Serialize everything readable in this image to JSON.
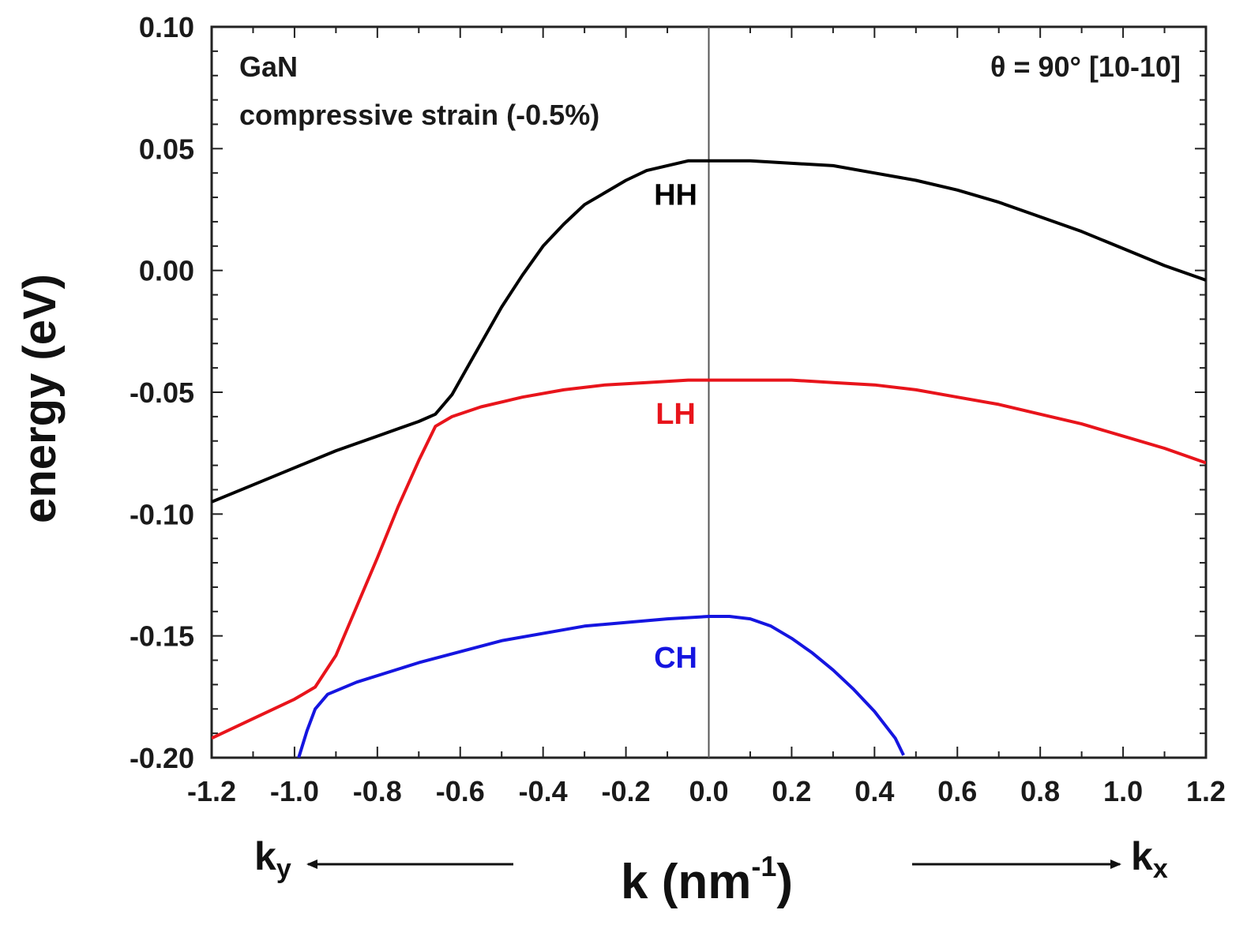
{
  "chart_data": {
    "type": "line",
    "xlabel": "k (nm",
    "xlabel_sup": "-1",
    "xlabel_close": ")",
    "ylabel": "energy (eV)",
    "xlim": [
      -1.2,
      1.2
    ],
    "ylim": [
      -0.2,
      0.1
    ],
    "x_ticks": [
      -1.2,
      -1.0,
      -0.8,
      -0.6,
      -0.4,
      -0.2,
      0.0,
      0.2,
      0.4,
      0.6,
      0.8,
      1.0,
      1.2
    ],
    "x_tick_labels": [
      "-1.2",
      "-1.0",
      "-0.8",
      "-0.6",
      "-0.4",
      "-0.2",
      "0.0",
      "0.2",
      "0.4",
      "0.6",
      "0.8",
      "1.0",
      "1.2"
    ],
    "y_ticks": [
      -0.2,
      -0.15,
      -0.1,
      -0.05,
      0.0,
      0.05,
      0.1
    ],
    "y_tick_labels": [
      "-0.20",
      "-0.15",
      "-0.10",
      "-0.05",
      "0.00",
      "0.05",
      "0.10"
    ],
    "vertical_line_x": 0.0,
    "grid": false,
    "annotations": {
      "material": "GaN",
      "strain": "compressive strain (-0.5%)",
      "angle": "θ = 90°   [10-10]"
    },
    "direction_labels": {
      "left": "k",
      "left_sub": "y",
      "right": "k",
      "right_sub": "x"
    },
    "series": [
      {
        "name": "HH",
        "color": "#000000",
        "label_pos": [
          -0.08,
          0.027
        ],
        "x": [
          -1.2,
          -1.1,
          -1.0,
          -0.9,
          -0.8,
          -0.7,
          -0.66,
          -0.62,
          -0.58,
          -0.54,
          -0.5,
          -0.45,
          -0.4,
          -0.35,
          -0.3,
          -0.25,
          -0.2,
          -0.15,
          -0.1,
          -0.05,
          0.0,
          0.1,
          0.2,
          0.3,
          0.4,
          0.5,
          0.6,
          0.7,
          0.8,
          0.9,
          1.0,
          1.1,
          1.2
        ],
        "y": [
          -0.095,
          -0.088,
          -0.081,
          -0.074,
          -0.068,
          -0.062,
          -0.059,
          -0.051,
          -0.039,
          -0.027,
          -0.015,
          -0.002,
          0.01,
          0.019,
          0.027,
          0.032,
          0.037,
          0.041,
          0.043,
          0.045,
          0.045,
          0.045,
          0.044,
          0.043,
          0.04,
          0.037,
          0.033,
          0.028,
          0.022,
          0.016,
          0.009,
          0.002,
          -0.004
        ]
      },
      {
        "name": "LH",
        "color": "#e8141b",
        "label_pos": [
          -0.08,
          -0.063
        ],
        "x": [
          -1.2,
          -1.1,
          -1.0,
          -0.95,
          -0.9,
          -0.85,
          -0.8,
          -0.75,
          -0.7,
          -0.66,
          -0.62,
          -0.55,
          -0.45,
          -0.35,
          -0.25,
          -0.15,
          -0.05,
          0.0,
          0.1,
          0.2,
          0.3,
          0.4,
          0.5,
          0.6,
          0.7,
          0.8,
          0.9,
          1.0,
          1.1,
          1.2
        ],
        "y": [
          -0.192,
          -0.184,
          -0.176,
          -0.171,
          -0.158,
          -0.138,
          -0.118,
          -0.097,
          -0.078,
          -0.064,
          -0.06,
          -0.056,
          -0.052,
          -0.049,
          -0.047,
          -0.046,
          -0.045,
          -0.045,
          -0.045,
          -0.045,
          -0.046,
          -0.047,
          -0.049,
          -0.052,
          -0.055,
          -0.059,
          -0.063,
          -0.068,
          -0.073,
          -0.079
        ]
      },
      {
        "name": "CH",
        "color": "#1515e0",
        "label_pos": [
          -0.08,
          -0.163
        ],
        "x": [
          -0.99,
          -0.97,
          -0.95,
          -0.92,
          -0.85,
          -0.7,
          -0.5,
          -0.3,
          -0.1,
          0.0,
          0.05,
          0.1,
          0.15,
          0.2,
          0.25,
          0.3,
          0.35,
          0.4,
          0.45,
          0.47
        ],
        "y": [
          -0.2,
          -0.189,
          -0.18,
          -0.174,
          -0.169,
          -0.161,
          -0.152,
          -0.146,
          -0.143,
          -0.142,
          -0.142,
          -0.143,
          -0.146,
          -0.151,
          -0.157,
          -0.164,
          -0.172,
          -0.181,
          -0.192,
          -0.199
        ]
      }
    ]
  }
}
